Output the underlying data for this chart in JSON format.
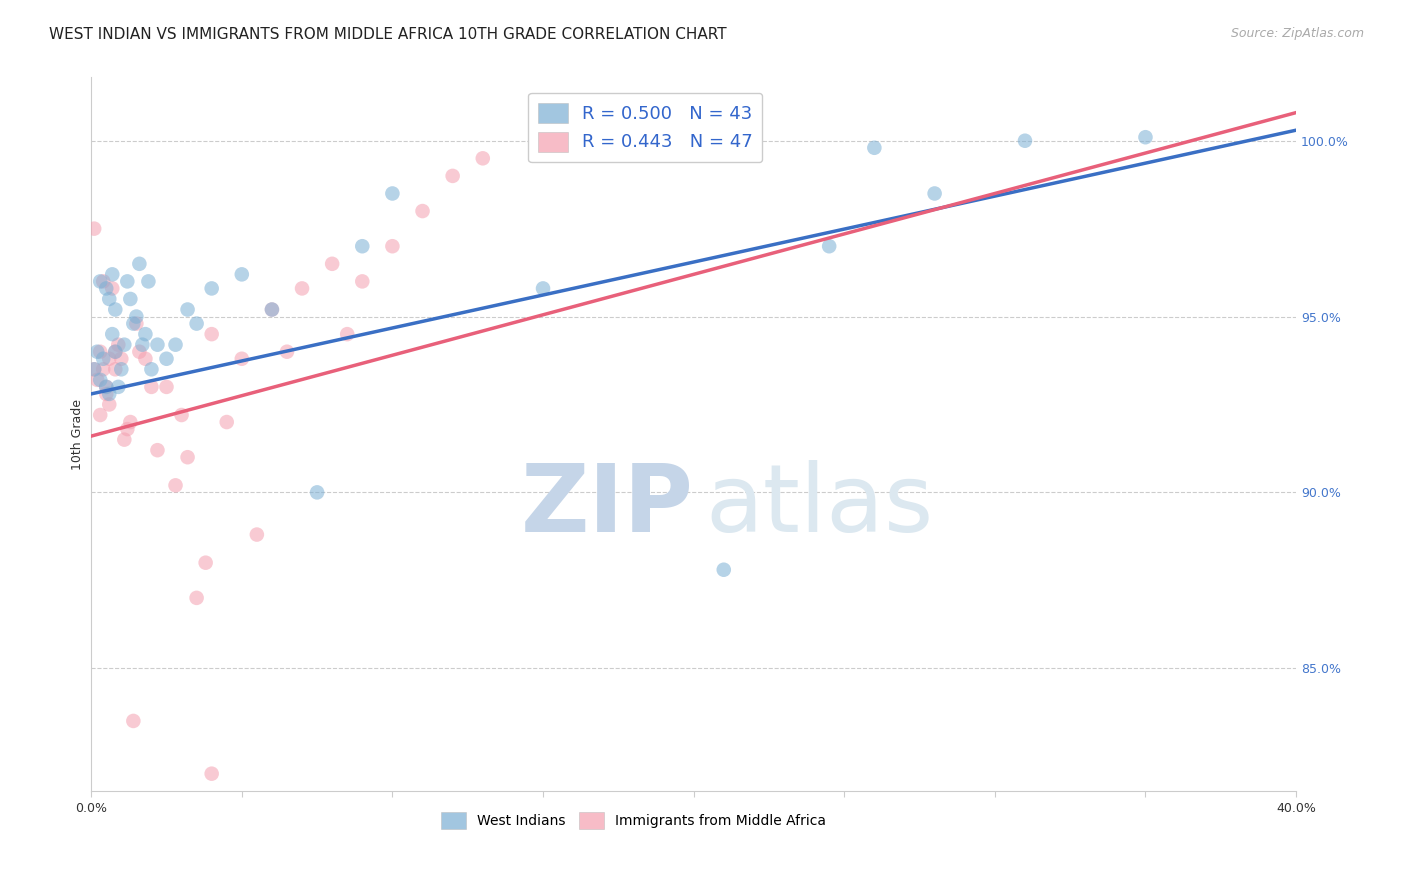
{
  "title": "WEST INDIAN VS IMMIGRANTS FROM MIDDLE AFRICA 10TH GRADE CORRELATION CHART",
  "source": "Source: ZipAtlas.com",
  "ylabel": "10th Grade",
  "xlim": [
    0.0,
    0.4
  ],
  "ylim": [
    0.815,
    1.018
  ],
  "yticks_right": [
    0.85,
    0.9,
    0.95,
    1.0
  ],
  "ytick_right_labels": [
    "85.0%",
    "90.0%",
    "95.0%",
    "100.0%"
  ],
  "grid_color": "#cccccc",
  "bg_color": "#ffffff",
  "blue_color": "#7bafd4",
  "pink_color": "#f4a0b0",
  "blue_line_color": "#3a6fc4",
  "pink_line_color": "#e8607a",
  "R_blue": 0.5,
  "N_blue": 43,
  "R_pink": 0.443,
  "N_pink": 47,
  "legend_label_blue": "West Indians",
  "legend_label_pink": "Immigrants from Middle Africa",
  "blue_line_x0": 0.0,
  "blue_line_y0": 0.928,
  "blue_line_x1": 0.4,
  "blue_line_y1": 1.003,
  "pink_line_x0": 0.0,
  "pink_line_y0": 0.916,
  "pink_line_x1": 0.4,
  "pink_line_y1": 1.008,
  "blue_scatter_x": [
    0.001,
    0.002,
    0.003,
    0.003,
    0.004,
    0.005,
    0.005,
    0.006,
    0.006,
    0.007,
    0.007,
    0.008,
    0.008,
    0.009,
    0.01,
    0.011,
    0.012,
    0.013,
    0.014,
    0.015,
    0.016,
    0.017,
    0.018,
    0.019,
    0.02,
    0.022,
    0.025,
    0.028,
    0.032,
    0.035,
    0.04,
    0.05,
    0.06,
    0.075,
    0.09,
    0.1,
    0.15,
    0.21,
    0.26,
    0.31,
    0.245,
    0.28,
    0.35
  ],
  "blue_scatter_y": [
    0.935,
    0.94,
    0.932,
    0.96,
    0.938,
    0.93,
    0.958,
    0.928,
    0.955,
    0.945,
    0.962,
    0.94,
    0.952,
    0.93,
    0.935,
    0.942,
    0.96,
    0.955,
    0.948,
    0.95,
    0.965,
    0.942,
    0.945,
    0.96,
    0.935,
    0.942,
    0.938,
    0.942,
    0.952,
    0.948,
    0.958,
    0.962,
    0.952,
    0.9,
    0.97,
    0.985,
    0.958,
    0.878,
    0.998,
    1.0,
    0.97,
    0.985,
    1.001
  ],
  "pink_scatter_x": [
    0.001,
    0.001,
    0.002,
    0.003,
    0.003,
    0.004,
    0.004,
    0.005,
    0.005,
    0.006,
    0.006,
    0.007,
    0.008,
    0.008,
    0.009,
    0.01,
    0.011,
    0.012,
    0.013,
    0.014,
    0.015,
    0.016,
    0.018,
    0.02,
    0.022,
    0.025,
    0.028,
    0.03,
    0.032,
    0.035,
    0.038,
    0.04,
    0.045,
    0.05,
    0.055,
    0.06,
    0.065,
    0.07,
    0.08,
    0.085,
    0.09,
    0.1,
    0.11,
    0.12,
    0.13,
    0.15,
    0.04
  ],
  "pink_scatter_y": [
    0.935,
    0.975,
    0.932,
    0.94,
    0.922,
    0.935,
    0.96,
    0.928,
    0.93,
    0.925,
    0.938,
    0.958,
    0.935,
    0.94,
    0.942,
    0.938,
    0.915,
    0.918,
    0.92,
    0.835,
    0.948,
    0.94,
    0.938,
    0.93,
    0.912,
    0.93,
    0.902,
    0.922,
    0.91,
    0.87,
    0.88,
    0.945,
    0.92,
    0.938,
    0.888,
    0.952,
    0.94,
    0.958,
    0.965,
    0.945,
    0.96,
    0.97,
    0.98,
    0.99,
    0.995,
    1.005,
    0.82
  ],
  "title_fontsize": 11,
  "axis_label_fontsize": 9,
  "tick_fontsize": 9,
  "legend_fontsize": 12
}
